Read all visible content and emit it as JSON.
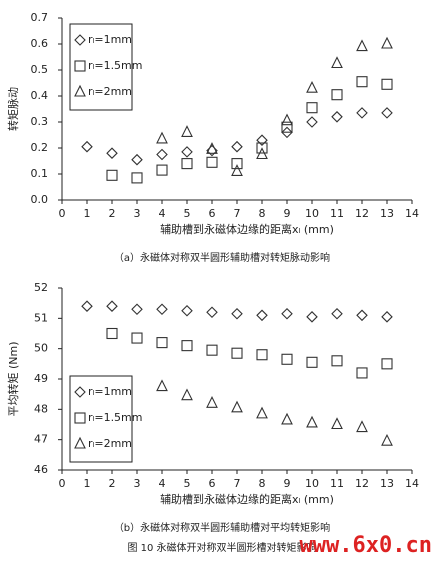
{
  "chart_data": [
    {
      "type": "scatter",
      "ylabel": "转矩脉动",
      "xlabel": "辅助槽到永磁体边缘的距离xₗ (mm)",
      "caption": "（a）永磁体对称双半圆形辅助槽对转矩脉动影响",
      "xlim": [
        0,
        14
      ],
      "xticks": [
        0,
        1,
        2,
        3,
        4,
        5,
        6,
        7,
        8,
        9,
        10,
        11,
        12,
        13,
        14
      ],
      "ylim": [
        0,
        0.7
      ],
      "yticks": [
        {
          "value": 0,
          "label": "0.0"
        },
        {
          "value": 0.1,
          "label": "0.1"
        },
        {
          "value": 0.2,
          "label": "0.2"
        },
        {
          "value": 0.3,
          "label": "0.3"
        },
        {
          "value": 0.4,
          "label": "0.4"
        },
        {
          "value": 0.5,
          "label": "0.5"
        },
        {
          "value": 0.6,
          "label": "0.6"
        },
        {
          "value": 0.7,
          "label": "0.7"
        }
      ],
      "legend": "upper left",
      "series": [
        {
          "name": "rₗ=1mm",
          "marker": "diamond",
          "color": "#333333",
          "x": [
            1,
            2,
            3,
            4,
            5,
            6,
            7,
            8,
            9,
            10,
            11,
            12,
            13
          ],
          "values": [
            0.205,
            0.18,
            0.155,
            0.175,
            0.185,
            0.19,
            0.205,
            0.23,
            0.26,
            0.3,
            0.32,
            0.335,
            0.335
          ]
        },
        {
          "name": "rₗ=1.5mm",
          "marker": "square",
          "color": "#333333",
          "x": [
            2,
            3,
            4,
            5,
            6,
            7,
            8,
            9,
            10,
            11,
            12,
            13
          ],
          "values": [
            0.095,
            0.085,
            0.115,
            0.14,
            0.145,
            0.14,
            0.2,
            0.28,
            0.355,
            0.405,
            0.455,
            0.445
          ]
        },
        {
          "name": "rₗ=2mm",
          "marker": "triangle",
          "color": "#333333",
          "x": [
            4,
            5,
            6,
            7,
            8,
            9,
            10,
            11,
            12,
            13
          ],
          "values": [
            0.235,
            0.26,
            0.195,
            0.11,
            0.175,
            0.305,
            0.43,
            0.525,
            0.59,
            0.6
          ]
        }
      ]
    },
    {
      "type": "scatter",
      "ylabel": "平均转矩 (Nm)",
      "xlabel": "辅助槽到永磁体边缘的距离xₗ (mm)",
      "caption": "（b）永磁体对称双半圆形辅助槽对平均转矩影响",
      "xlim": [
        0,
        14
      ],
      "xticks": [
        0,
        1,
        2,
        3,
        4,
        5,
        6,
        7,
        8,
        9,
        10,
        11,
        12,
        13,
        14
      ],
      "ylim": [
        46,
        52
      ],
      "yticks": [
        46,
        47,
        48,
        49,
        50,
        51,
        52
      ],
      "legend": "lower left",
      "series": [
        {
          "name": "rₗ=1mm",
          "marker": "diamond",
          "color": "#333333",
          "x": [
            1,
            2,
            3,
            4,
            5,
            6,
            7,
            8,
            9,
            10,
            11,
            12,
            13
          ],
          "values": [
            51.4,
            51.4,
            51.3,
            51.3,
            51.25,
            51.2,
            51.15,
            51.1,
            51.15,
            51.05,
            51.15,
            51.1,
            51.05
          ]
        },
        {
          "name": "rₗ=1.5mm",
          "marker": "square",
          "color": "#333333",
          "x": [
            2,
            3,
            4,
            5,
            6,
            7,
            8,
            9,
            10,
            11,
            12,
            13
          ],
          "values": [
            50.5,
            50.35,
            50.2,
            50.1,
            49.95,
            49.85,
            49.8,
            49.65,
            49.55,
            49.6,
            49.2,
            49.5
          ]
        },
        {
          "name": "rₗ=2mm",
          "marker": "triangle",
          "color": "#333333",
          "x": [
            4,
            5,
            6,
            7,
            8,
            9,
            10,
            11,
            12,
            13
          ],
          "values": [
            48.75,
            48.45,
            48.2,
            48.05,
            47.85,
            47.65,
            47.55,
            47.5,
            47.4,
            46.95
          ]
        }
      ]
    }
  ],
  "figure_caption": "图 10 永磁体开对称双半圆形槽对转矩影响",
  "watermark": "www.6x0.cn"
}
